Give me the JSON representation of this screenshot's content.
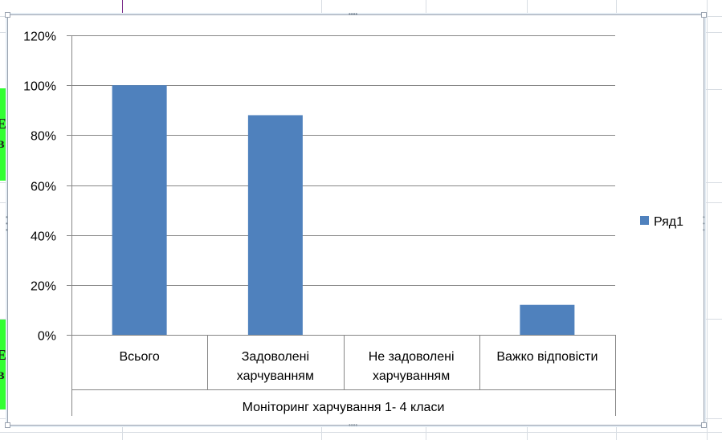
{
  "chart_data": {
    "type": "bar",
    "categories": [
      [
        "Всього"
      ],
      [
        "Задоволені",
        "харчуванням"
      ],
      [
        "Не задоволені",
        "харчуванням"
      ],
      [
        "Важко відповісти"
      ]
    ],
    "series": [
      {
        "name": "Ряд1",
        "values": [
          1.0,
          0.88,
          0.0,
          0.12
        ],
        "color": "#4f81bd"
      }
    ],
    "xlabel": "Моніторинг харчування 1- 4 класи",
    "ylabel": "",
    "ylim": [
      0,
      1.2
    ],
    "yticks": [
      "0%",
      "20%",
      "40%",
      "60%",
      "80%",
      "100%",
      "120%"
    ],
    "grid": true,
    "legend": "right"
  },
  "sheet": {
    "cell_fragments": [
      "Е",
      "в",
      "Е",
      "в"
    ]
  }
}
